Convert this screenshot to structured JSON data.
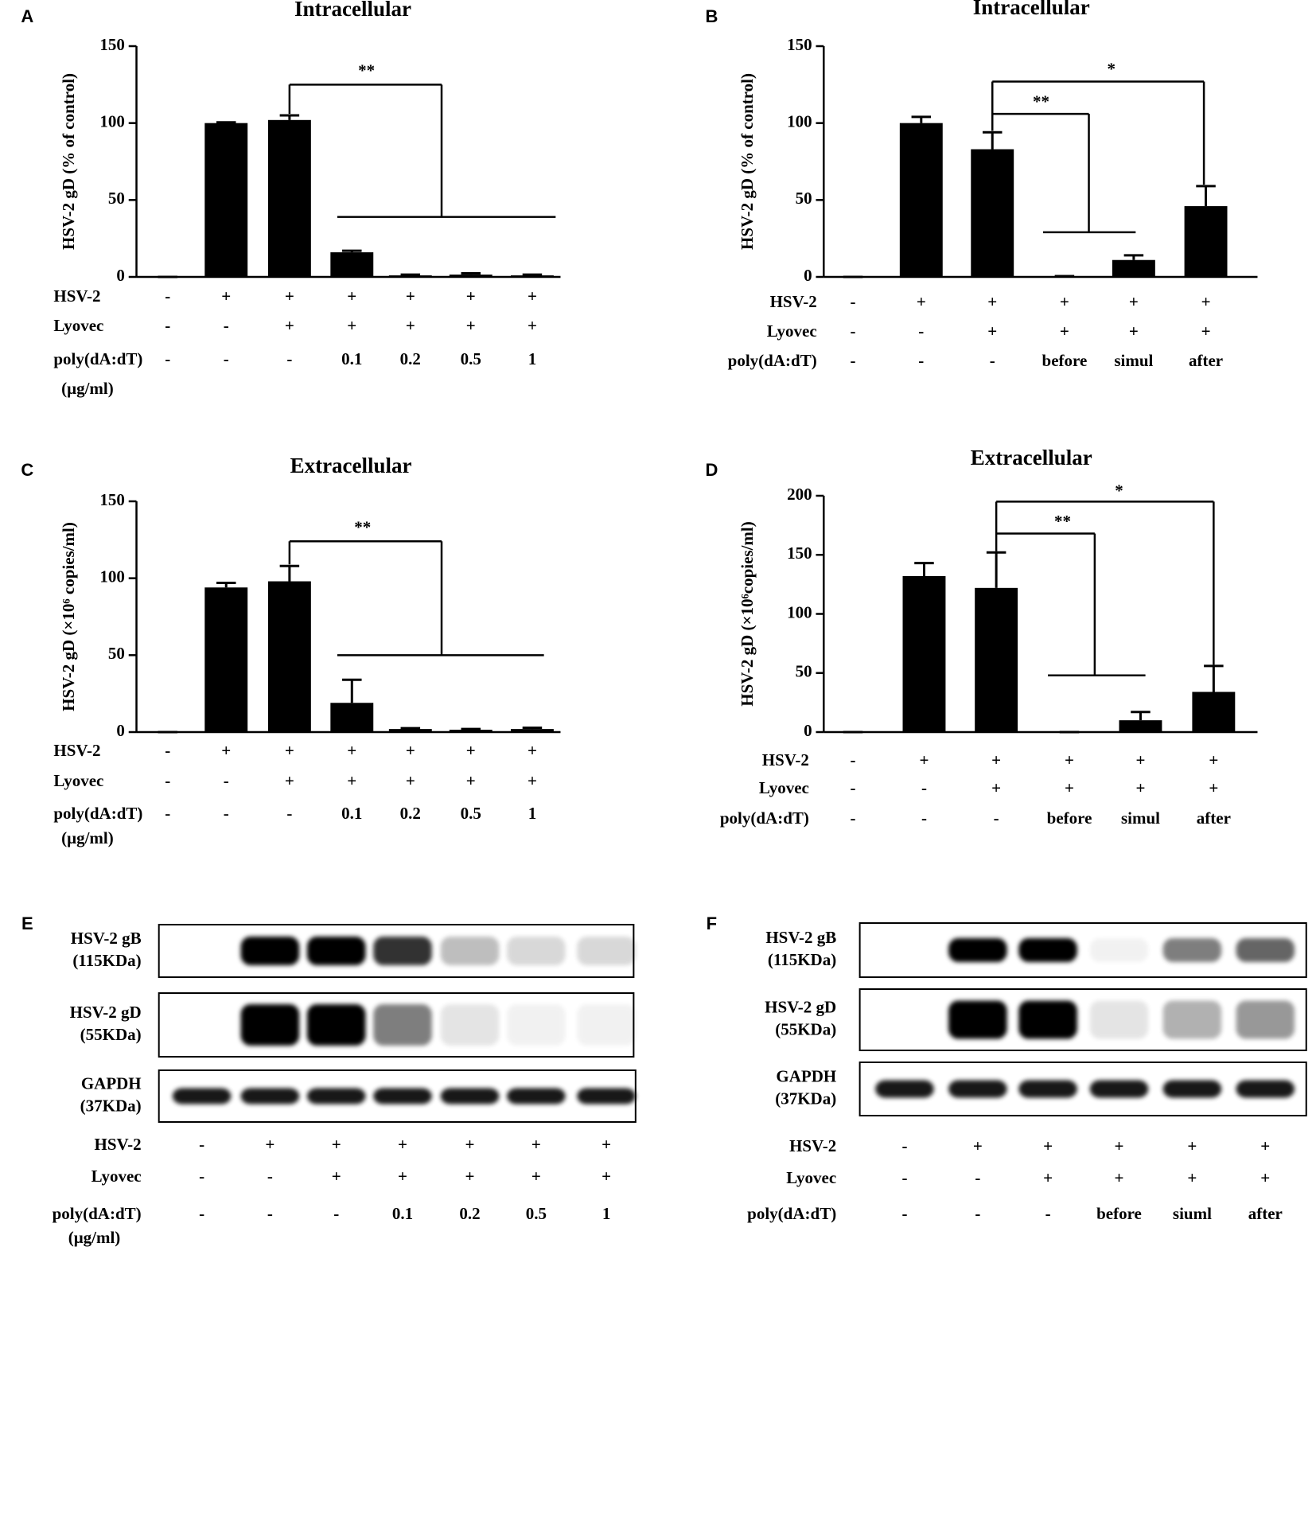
{
  "chart_data": [
    {
      "type": "bar",
      "panel": "A",
      "title": "Intracellular",
      "y_label": "HSV-2 gD (% of control)",
      "color": "#000000",
      "values": [
        0,
        100,
        102,
        16,
        1,
        1.5,
        1
      ],
      "errors": [
        0,
        0.5,
        3,
        1,
        0.5,
        0.8,
        0.5
      ],
      "ylim": [
        0,
        150
      ],
      "yticks": [
        0,
        50,
        100,
        150
      ],
      "annotations": [
        {
          "text": "**"
        }
      ],
      "conditions": [
        {
          "label": "HSV-2",
          "values": [
            "-",
            "+",
            "+",
            "+",
            "+",
            "+",
            "+"
          ]
        },
        {
          "label": "Lyovec",
          "values": [
            "-",
            "-",
            "+",
            "+",
            "+",
            "+",
            "+"
          ]
        },
        {
          "label": "poly(dA:dT)",
          "unit": "(μg/ml)",
          "values": [
            "-",
            "-",
            "-",
            "0.1",
            "0.2",
            "0.5",
            "1"
          ]
        }
      ]
    },
    {
      "type": "bar",
      "panel": "B",
      "title": "Intracellular",
      "y_label": "HSV-2 gD (% of control)",
      "color": "#000000",
      "values": [
        0,
        100,
        83,
        0.5,
        11,
        46
      ],
      "errors": [
        0,
        4,
        11,
        0,
        3,
        13
      ],
      "ylim": [
        0,
        150
      ],
      "yticks": [
        0,
        50,
        100,
        150
      ],
      "annotations": [
        {
          "text": "**"
        },
        {
          "text": "*"
        }
      ],
      "conditions": [
        {
          "label": "HSV-2",
          "values": [
            "-",
            "+",
            "+",
            "+",
            "+",
            "+"
          ]
        },
        {
          "label": "Lyovec",
          "values": [
            "-",
            "-",
            "+",
            "+",
            "+",
            "+"
          ]
        },
        {
          "label": "poly(dA:dT)",
          "values": [
            "-",
            "-",
            "-",
            "before",
            "simul",
            "after"
          ]
        }
      ]
    },
    {
      "type": "bar",
      "panel": "C",
      "title": "Extracellular",
      "y_label": "HSV-2 gD (×10⁶ copies/ml)",
      "color": "#000000",
      "values": [
        0,
        94,
        98,
        19,
        2,
        1.5,
        2
      ],
      "errors": [
        0,
        3,
        10,
        15,
        0.5,
        0.5,
        0.8
      ],
      "ylim": [
        0,
        150
      ],
      "yticks": [
        0,
        50,
        100,
        150
      ],
      "annotations": [
        {
          "text": "**"
        }
      ],
      "conditions": [
        {
          "label": "HSV-2",
          "values": [
            "-",
            "+",
            "+",
            "+",
            "+",
            "+",
            "+"
          ]
        },
        {
          "label": "Lyovec",
          "values": [
            "-",
            "-",
            "+",
            "+",
            "+",
            "+",
            "+"
          ]
        },
        {
          "label": "poly(dA:dT)",
          "unit": "(μg/ml)",
          "values": [
            "-",
            "-",
            "-",
            "0.1",
            "0.2",
            "0.5",
            "1"
          ]
        }
      ]
    },
    {
      "type": "bar",
      "panel": "D",
      "title": "Extracellular",
      "y_label": "HSV-2 gD (×10⁶copies/ml)",
      "color": "#000000",
      "values": [
        0,
        132,
        122,
        0,
        10,
        34
      ],
      "errors": [
        0,
        11,
        30,
        0,
        7,
        22
      ],
      "ylim": [
        0,
        200
      ],
      "yticks": [
        0,
        50,
        100,
        150,
        200
      ],
      "annotations": [
        {
          "text": "**"
        },
        {
          "text": "*"
        }
      ],
      "conditions": [
        {
          "label": "HSV-2",
          "values": [
            "-",
            "+",
            "+",
            "+",
            "+",
            "+"
          ]
        },
        {
          "label": "Lyovec",
          "values": [
            "-",
            "-",
            "+",
            "+",
            "+",
            "+"
          ]
        },
        {
          "label": "poly(dA:dT)",
          "values": [
            "-",
            "-",
            "-",
            "before",
            "simul",
            "after"
          ]
        }
      ]
    }
  ],
  "blots": [
    {
      "panel": "E",
      "rows": [
        {
          "name": "HSV-2 gB",
          "size": "(115KDa)"
        },
        {
          "name": "HSV-2 gD",
          "size": "(55KDa)"
        },
        {
          "name": "GAPDH",
          "size": "(37KDa)"
        }
      ],
      "conditions": [
        {
          "label": "HSV-2",
          "values": [
            "-",
            "+",
            "+",
            "+",
            "+",
            "+",
            "+"
          ]
        },
        {
          "label": "Lyovec",
          "values": [
            "-",
            "-",
            "+",
            "+",
            "+",
            "+",
            "+"
          ]
        },
        {
          "label": "poly(dA:dT)",
          "unit": "(μg/ml)",
          "values": [
            "-",
            "-",
            "-",
            "0.1",
            "0.2",
            "0.5",
            "1"
          ]
        }
      ]
    },
    {
      "panel": "F",
      "rows": [
        {
          "name": "HSV-2 gB",
          "size": "(115KDa)"
        },
        {
          "name": "HSV-2 gD",
          "size": "(55KDa)"
        },
        {
          "name": "GAPDH",
          "size": "(37KDa)"
        }
      ],
      "conditions": [
        {
          "label": "HSV-2",
          "values": [
            "-",
            "+",
            "+",
            "+",
            "+",
            "+"
          ]
        },
        {
          "label": "Lyovec",
          "values": [
            "-",
            "-",
            "+",
            "+",
            "+",
            "+"
          ]
        },
        {
          "label": "poly(dA:dT)",
          "values": [
            "-",
            "-",
            "-",
            "before",
            "siuml",
            "after"
          ]
        }
      ]
    }
  ]
}
